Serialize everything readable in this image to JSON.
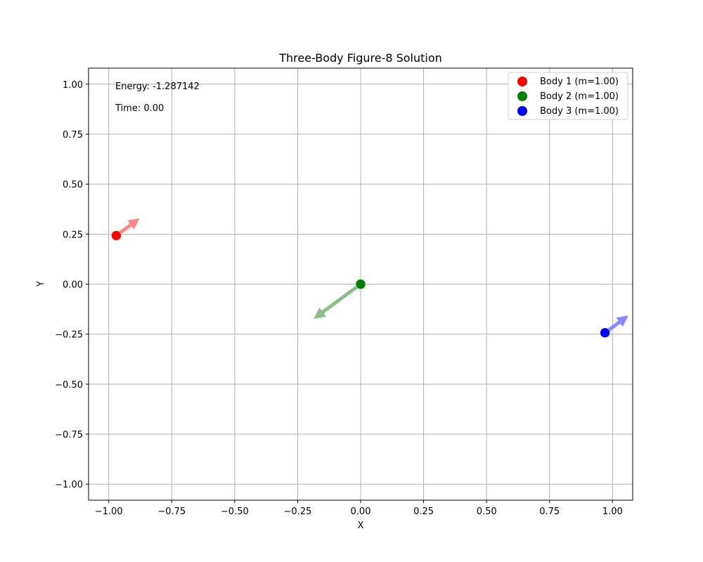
{
  "chart_data": {
    "type": "scatter",
    "title": "Three-Body Figure-8 Solution",
    "xlabel": "X",
    "ylabel": "Y",
    "xlim": [
      -1.08,
      1.08
    ],
    "ylim": [
      -1.08,
      1.08
    ],
    "xticks": [
      -1.0,
      -0.75,
      -0.5,
      -0.25,
      0.0,
      0.25,
      0.5,
      0.75,
      1.0
    ],
    "xtick_labels": [
      "−1.00",
      "−0.75",
      "−0.50",
      "−0.25",
      "0.00",
      "0.25",
      "0.50",
      "0.75",
      "1.00"
    ],
    "yticks": [
      -1.0,
      -0.75,
      -0.5,
      -0.25,
      0.0,
      0.25,
      0.5,
      0.75,
      1.0
    ],
    "ytick_labels": [
      "−1.00",
      "−0.75",
      "−0.50",
      "−0.25",
      "0.00",
      "0.25",
      "0.50",
      "0.75",
      "1.00"
    ],
    "grid": true,
    "legend_position": "top-right",
    "annotations": [
      "Energy: -1.287142",
      "Time: 0.00"
    ],
    "series": [
      {
        "name": "Body 1 (m=1.00)",
        "color": "#ff0000",
        "arrow_color": "#ff8888",
        "x": -0.97,
        "y": 0.243,
        "vx": 0.233,
        "vy": 0.216
      },
      {
        "name": "Body 2 (m=1.00)",
        "color": "#008000",
        "arrow_color": "#88c088",
        "x": 0.0,
        "y": 0.0,
        "vx": -0.466,
        "vy": -0.432
      },
      {
        "name": "Body 3 (m=1.00)",
        "color": "#0000ff",
        "arrow_color": "#8888ff",
        "x": 0.97,
        "y": -0.243,
        "vx": 0.233,
        "vy": 0.216
      }
    ]
  }
}
